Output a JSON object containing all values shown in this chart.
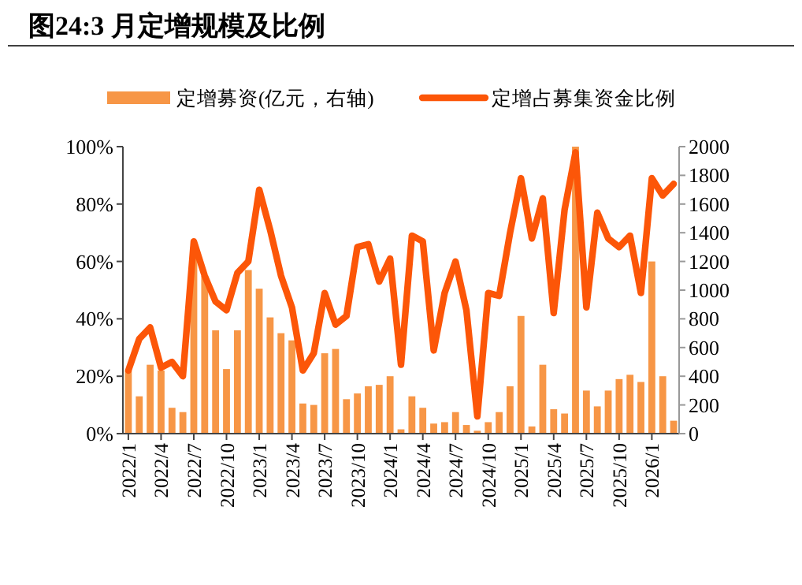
{
  "chart_data": {
    "type": "bar",
    "title": "图24:3 月定增规模及比例",
    "categories": [
      "2022/1",
      null,
      null,
      "2022/4",
      null,
      null,
      "2022/7",
      null,
      null,
      "2022/10",
      null,
      null,
      "2023/1",
      null,
      null,
      "2023/4",
      null,
      null,
      "2023/7",
      null,
      null,
      "2023/10",
      null,
      null,
      "2024/1",
      null,
      null,
      "2024/4",
      null,
      null,
      "2024/7",
      null,
      null,
      "2024/10",
      null,
      null,
      "2025/1",
      null,
      null,
      "2025/4",
      null,
      null,
      "2025/7",
      null,
      null,
      "2025/10",
      null,
      null,
      "2026/1",
      null,
      null
    ],
    "series": [
      {
        "name": "定增募资(亿元，右轴)",
        "axis": "y2",
        "color": "#f79646",
        "values": [
          440,
          260,
          480,
          440,
          180,
          150,
          1300,
          1100,
          720,
          450,
          720,
          1140,
          1010,
          810,
          700,
          650,
          210,
          200,
          560,
          590,
          240,
          280,
          330,
          340,
          400,
          30,
          260,
          180,
          70,
          80,
          150,
          60,
          20,
          80,
          150,
          330,
          820,
          50,
          480,
          170,
          140,
          2000,
          300,
          190,
          300,
          380,
          410,
          360,
          1200,
          400,
          90
        ]
      },
      {
        "name": "定增占募集资金比例",
        "type": "line",
        "color": "#fc5608",
        "values": [
          22,
          33,
          37,
          23,
          25,
          20,
          67,
          55,
          46,
          43,
          56,
          60,
          85,
          71,
          55,
          44,
          22,
          28,
          49,
          38,
          41,
          65,
          66,
          53,
          61,
          24,
          69,
          67,
          29,
          49,
          60,
          43,
          6,
          49,
          48,
          70,
          89,
          68,
          82,
          42,
          78,
          98,
          44,
          77,
          68,
          65,
          69,
          49,
          89,
          83,
          87
        ]
      }
    ],
    "ylim": [
      0,
      100
    ],
    "yticks": [
      {
        "value": 0,
        "label": "0%"
      },
      {
        "value": 20,
        "label": "20%"
      },
      {
        "value": 40,
        "label": "40%"
      },
      {
        "value": 60,
        "label": "60%"
      },
      {
        "value": 80,
        "label": "80%"
      },
      {
        "value": 100,
        "label": "100%"
      }
    ],
    "y2lim": [
      0,
      2000
    ],
    "y2ticks": [
      0,
      200,
      400,
      600,
      800,
      1000,
      1200,
      1400,
      1600,
      1800,
      2000
    ],
    "legend": "top",
    "grid": false
  }
}
